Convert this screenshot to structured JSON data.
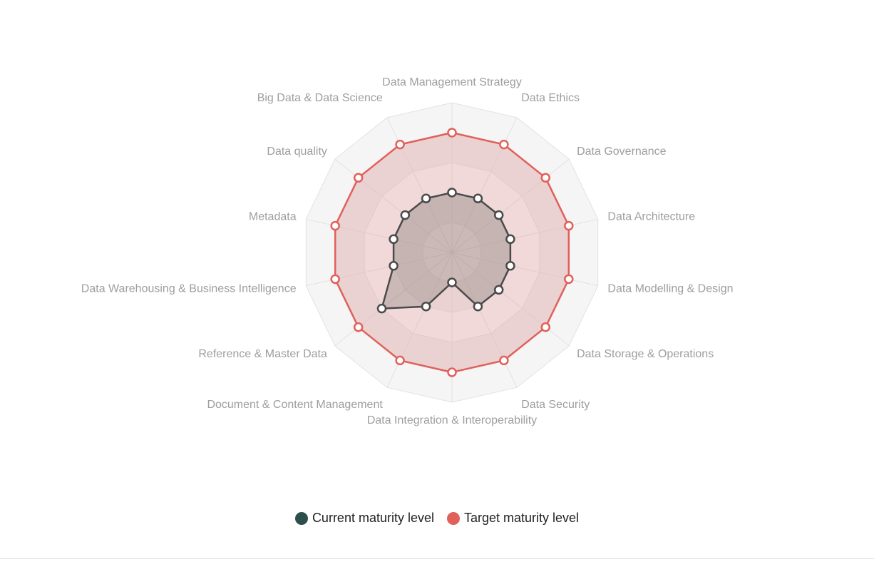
{
  "chart_data": {
    "type": "radar",
    "axes": [
      "Data Management Strategy",
      "Data Ethics",
      "Data Governance",
      "Data Architecture",
      "Data Modelling & Design",
      "Data Storage & Operations",
      "Data Security",
      "Data Integration & Interoperability",
      "Document & Content Management",
      "Reference & Master Data",
      "Data Warehousing & Business Intelligence",
      "Metadata",
      "Data quality",
      "Big Data & Data Science"
    ],
    "rlim": [
      0,
      5
    ],
    "series": [
      {
        "name": "Current maturity level",
        "color": "#2d4f4c",
        "line_color": "#4a4a4a",
        "values": [
          2,
          2,
          2,
          2,
          2,
          2,
          2,
          1,
          2,
          3,
          2,
          2,
          2,
          2
        ]
      },
      {
        "name": "Target maturity level",
        "color": "#e0605a",
        "line_color": "#e0605a",
        "values": [
          4,
          4,
          4,
          4,
          4,
          4,
          4,
          4,
          4,
          4,
          4,
          4,
          4,
          4
        ]
      }
    ],
    "legend_position": "bottom"
  }
}
